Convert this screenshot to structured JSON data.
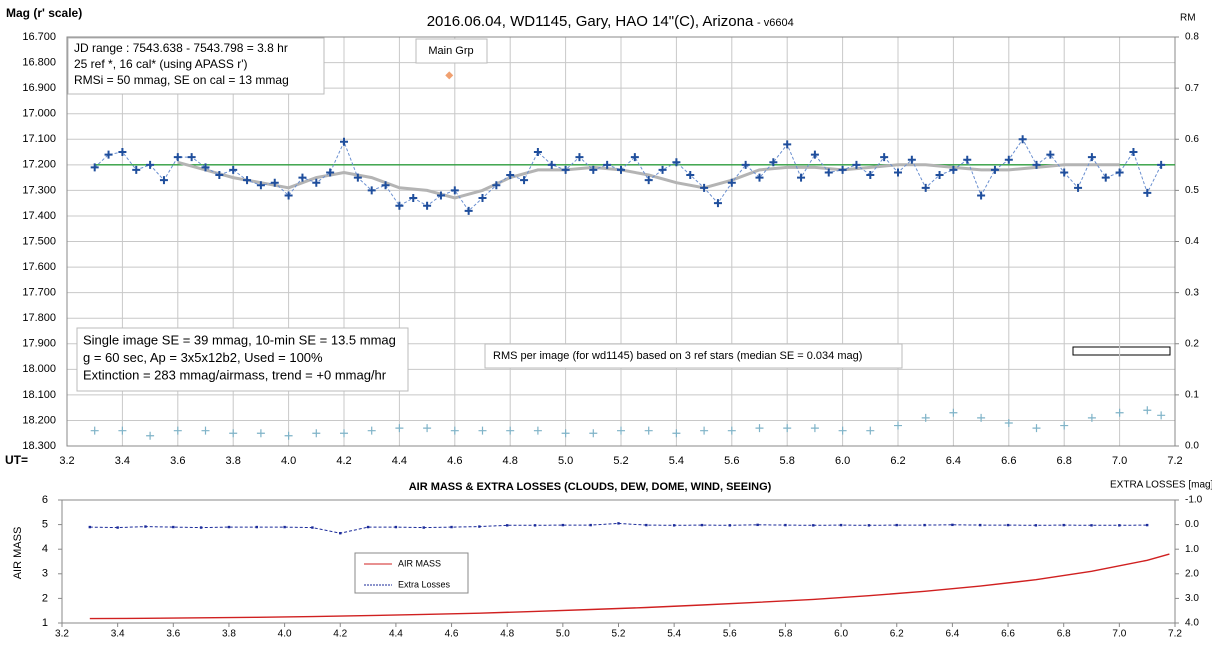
{
  "chart_data": [
    {
      "type": "line",
      "title": "2016.06.04,  WD1145, Gary, HAO  14\"(C), Arizona",
      "subtitle": "- v6604",
      "y_label": "Mag (r' scale)",
      "y2_label": "RM",
      "x_label": "UT=",
      "xlim": [
        3.2,
        7.2
      ],
      "xticks": [
        3.2,
        3.4,
        3.6,
        3.8,
        {
          "value": 4.0,
          "label": "4.0"
        },
        4.2,
        4.4,
        4.6,
        4.8,
        {
          "value": 5.0,
          "label": "5.0"
        },
        5.2,
        5.4,
        5.6,
        5.8,
        {
          "value": 6.0,
          "label": "6.0"
        },
        6.2,
        6.4,
        6.6,
        6.8,
        {
          "value": 7.0,
          "label": "7.0"
        },
        7.2
      ],
      "ylim": [
        18.3,
        16.7
      ],
      "yticks": [
        {
          "value": 16.7,
          "label": "16.700"
        },
        {
          "value": 16.8,
          "label": "16.800"
        },
        {
          "value": 16.9,
          "label": "16.900"
        },
        {
          "value": 17.0,
          "label": "17.000"
        },
        {
          "value": 17.1,
          "label": "17.100"
        },
        {
          "value": 17.2,
          "label": "17.200"
        },
        {
          "value": 17.3,
          "label": "17.300"
        },
        {
          "value": 17.4,
          "label": "17.400"
        },
        {
          "value": 17.5,
          "label": "17.500"
        },
        {
          "value": 17.6,
          "label": "17.600"
        },
        {
          "value": 17.7,
          "label": "17.700"
        },
        {
          "value": 17.8,
          "label": "17.800"
        },
        {
          "value": 17.9,
          "label": "17.900"
        },
        {
          "value": 18.0,
          "label": "18.000"
        },
        {
          "value": 18.1,
          "label": "18.100"
        },
        {
          "value": 18.2,
          "label": "18.200"
        },
        {
          "value": 18.3,
          "label": "18.300"
        }
      ],
      "y2lim": [
        0,
        0.8
      ],
      "y2ticks": [
        {
          "value": 0,
          "label": "0.0"
        },
        0.1,
        0.2,
        0.3,
        0.4,
        0.5,
        0.6,
        0.7,
        0.8
      ],
      "grid": true,
      "series": [
        {
          "color": "#7fb3c8",
          "marker": "plus",
          "axis": "y2",
          "x": [
            3.3,
            3.4,
            3.5,
            3.6,
            3.7,
            3.8,
            3.9,
            4.0,
            4.1,
            4.2,
            4.3,
            4.4,
            4.5,
            4.6,
            4.7,
            4.8,
            4.9,
            5.0,
            5.1,
            5.2,
            5.3,
            5.4,
            5.5,
            5.6,
            5.7,
            5.8,
            5.9,
            6.0,
            6.1,
            6.2,
            6.3,
            6.4,
            6.5,
            6.6,
            6.7,
            6.8,
            6.9,
            7.0,
            7.1,
            7.15
          ],
          "values": [
            0.03,
            0.03,
            0.02,
            0.03,
            0.03,
            0.025,
            0.025,
            0.02,
            0.025,
            0.025,
            0.03,
            0.035,
            0.035,
            0.03,
            0.03,
            0.03,
            0.03,
            0.025,
            0.025,
            0.03,
            0.03,
            0.025,
            0.03,
            0.03,
            0.035,
            0.035,
            0.035,
            0.03,
            0.03,
            0.04,
            0.055,
            0.065,
            0.055,
            0.045,
            0.035,
            0.04,
            0.055,
            0.065,
            0.07,
            0.06
          ]
        },
        {
          "color": "#2e9e3e",
          "x": [
            3.3,
            7.2
          ],
          "values": [
            17.2,
            17.2
          ]
        },
        {
          "color": "#b4b4b4",
          "line_width": 3,
          "x": [
            3.6,
            3.7,
            3.8,
            3.9,
            4.0,
            4.1,
            4.2,
            4.3,
            4.4,
            4.5,
            4.6,
            4.7,
            4.8,
            4.9,
            5.0,
            5.1,
            5.2,
            5.3,
            5.4,
            5.5,
            5.6,
            5.7,
            5.8,
            5.9,
            6.0,
            6.1,
            6.2,
            6.3,
            6.4,
            6.5,
            6.6,
            6.7,
            6.8,
            6.9,
            7.0
          ],
          "values": [
            17.19,
            17.22,
            17.25,
            17.27,
            17.29,
            17.25,
            17.23,
            17.25,
            17.29,
            17.3,
            17.33,
            17.3,
            17.25,
            17.22,
            17.22,
            17.21,
            17.22,
            17.24,
            17.27,
            17.29,
            17.26,
            17.22,
            17.21,
            17.21,
            17.22,
            17.21,
            17.2,
            17.2,
            17.21,
            17.22,
            17.22,
            17.21,
            17.2,
            17.2,
            17.2
          ]
        },
        {
          "color": "#1f4e9c",
          "line_color": "#6a8fd0",
          "dashed": true,
          "marker": "plus",
          "x": [
            3.3,
            3.35,
            3.4,
            3.45,
            3.5,
            3.55,
            3.6,
            3.65,
            3.7,
            3.75,
            3.8,
            3.85,
            3.9,
            3.95,
            4.0,
            4.05,
            4.1,
            4.15,
            4.2,
            4.25,
            4.3,
            4.35,
            4.4,
            4.45,
            4.5,
            4.55,
            4.6,
            4.65,
            4.7,
            4.75,
            4.8,
            4.85,
            4.9,
            4.95,
            5.0,
            5.05,
            5.1,
            5.15,
            5.2,
            5.25,
            5.3,
            5.35,
            5.4,
            5.45,
            5.5,
            5.55,
            5.6,
            5.65,
            5.7,
            5.75,
            5.8,
            5.85,
            5.9,
            5.95,
            6.0,
            6.05,
            6.1,
            6.15,
            6.2,
            6.25,
            6.3,
            6.35,
            6.4,
            6.45,
            6.5,
            6.55,
            6.6,
            6.65,
            6.7,
            6.75,
            6.8,
            6.85,
            6.9,
            6.95,
            7.0,
            7.05,
            7.1,
            7.15
          ],
          "values": [
            17.21,
            17.16,
            17.15,
            17.22,
            17.2,
            17.26,
            17.17,
            17.17,
            17.21,
            17.24,
            17.22,
            17.26,
            17.28,
            17.27,
            17.32,
            17.25,
            17.27,
            17.23,
            17.11,
            17.25,
            17.3,
            17.28,
            17.36,
            17.33,
            17.36,
            17.32,
            17.3,
            17.38,
            17.33,
            17.28,
            17.24,
            17.26,
            17.15,
            17.2,
            17.22,
            17.17,
            17.22,
            17.2,
            17.22,
            17.17,
            17.26,
            17.22,
            17.19,
            17.24,
            17.29,
            17.35,
            17.27,
            17.2,
            17.25,
            17.19,
            17.12,
            17.25,
            17.16,
            17.23,
            17.22,
            17.2,
            17.24,
            17.17,
            17.23,
            17.18,
            17.29,
            17.24,
            17.22,
            17.18,
            17.32,
            17.22,
            17.18,
            17.1,
            17.2,
            17.16,
            17.23,
            17.29,
            17.17,
            17.25,
            17.23,
            17.15,
            17.31,
            17.2
          ]
        },
        {
          "name": "Main Grp",
          "color": "#f0a070",
          "marker": "diamond",
          "x": [
            4.58
          ],
          "values": [
            16.85
          ]
        }
      ],
      "annotations": [
        {
          "lines": [
            "JD range  : 7543.638  - 7543.798  = 3.8 hr",
            "  25 ref *, 16 cal* (using APASS r')",
            "RMSi = 50 mmag, SE on cal = 13 mmag"
          ]
        },
        {
          "lines": [
            "Single image SE = 39 mmag, 10-min  SE = 13.5 mmag",
            "g = 60 sec, Ap = 3x5x12b2, Used = 100%",
            "Extinction = 283 mmag/airmass, trend = +0 mmag/hr"
          ]
        },
        {
          "lines": [
            "RMS per image (for wd1145) based on 3 ref stars (median SE = 0.034 mag)"
          ]
        }
      ]
    },
    {
      "type": "line",
      "title": "AIR MASS & EXTRA LOSSES (CLOUDS, DEW, DOME, WIND, SEEING)",
      "y_label": "AIR MASS",
      "y2_label": "EXTRA LOSSES [mag]",
      "xlim": [
        3.2,
        7.2
      ],
      "xticks": [
        3.2,
        3.4,
        3.6,
        3.8,
        {
          "value": 4.0,
          "label": "4.0"
        },
        4.2,
        4.4,
        4.6,
        4.8,
        {
          "value": 5.0,
          "label": "5.0"
        },
        5.2,
        5.4,
        5.6,
        5.8,
        {
          "value": 6.0,
          "label": "6.0"
        },
        6.2,
        6.4,
        6.6,
        6.8,
        {
          "value": 7.0,
          "label": "7.0"
        },
        7.2
      ],
      "ylim": [
        1,
        6
      ],
      "yticks": [
        1,
        2,
        3,
        4,
        5,
        6
      ],
      "y2lim": [
        4,
        -1
      ],
      "y2ticks": [
        {
          "value": -1,
          "label": "-1.0"
        },
        {
          "value": 0,
          "label": "0.0"
        },
        {
          "value": 1,
          "label": "1.0"
        },
        {
          "value": 2,
          "label": "2.0"
        },
        {
          "value": 3,
          "label": "3.0"
        },
        {
          "value": 4,
          "label": "4.0"
        }
      ],
      "grid": false,
      "series": [
        {
          "name": "AIR MASS",
          "color": "#d02020",
          "x": [
            3.3,
            3.5,
            3.7,
            3.9,
            4.1,
            4.3,
            4.5,
            4.7,
            4.9,
            5.1,
            5.3,
            5.5,
            5.7,
            5.9,
            6.1,
            6.3,
            6.5,
            6.7,
            6.9,
            7.1,
            7.18
          ],
          "values": [
            1.18,
            1.19,
            1.21,
            1.23,
            1.26,
            1.3,
            1.35,
            1.4,
            1.47,
            1.55,
            1.63,
            1.73,
            1.84,
            1.96,
            2.11,
            2.29,
            2.5,
            2.76,
            3.1,
            3.55,
            3.8
          ]
        },
        {
          "name": "Extra Losses",
          "color": "#1a2a9a",
          "dashed": true,
          "marker": "square",
          "axis": "y2",
          "x": [
            3.3,
            3.4,
            3.5,
            3.6,
            3.7,
            3.8,
            3.9,
            4.0,
            4.1,
            4.2,
            4.3,
            4.4,
            4.5,
            4.6,
            4.7,
            4.8,
            4.9,
            5.0,
            5.1,
            5.2,
            5.3,
            5.4,
            5.5,
            5.6,
            5.7,
            5.8,
            5.9,
            6.0,
            6.1,
            6.2,
            6.3,
            6.4,
            6.5,
            6.6,
            6.7,
            6.8,
            6.9,
            7.0,
            7.1
          ],
          "values": [
            0.1,
            0.12,
            0.08,
            0.1,
            0.12,
            0.1,
            0.1,
            0.1,
            0.12,
            0.35,
            0.1,
            0.1,
            0.12,
            0.1,
            0.08,
            0.03,
            0.03,
            0.02,
            0.02,
            -0.05,
            0.02,
            0.03,
            0.02,
            0.03,
            0.01,
            0.02,
            0.03,
            0.02,
            0.03,
            0.02,
            0.02,
            0.01,
            0.02,
            0.02,
            0.03,
            0.02,
            0.03,
            0.03,
            0.02
          ]
        }
      ],
      "legend": "center-left"
    }
  ]
}
